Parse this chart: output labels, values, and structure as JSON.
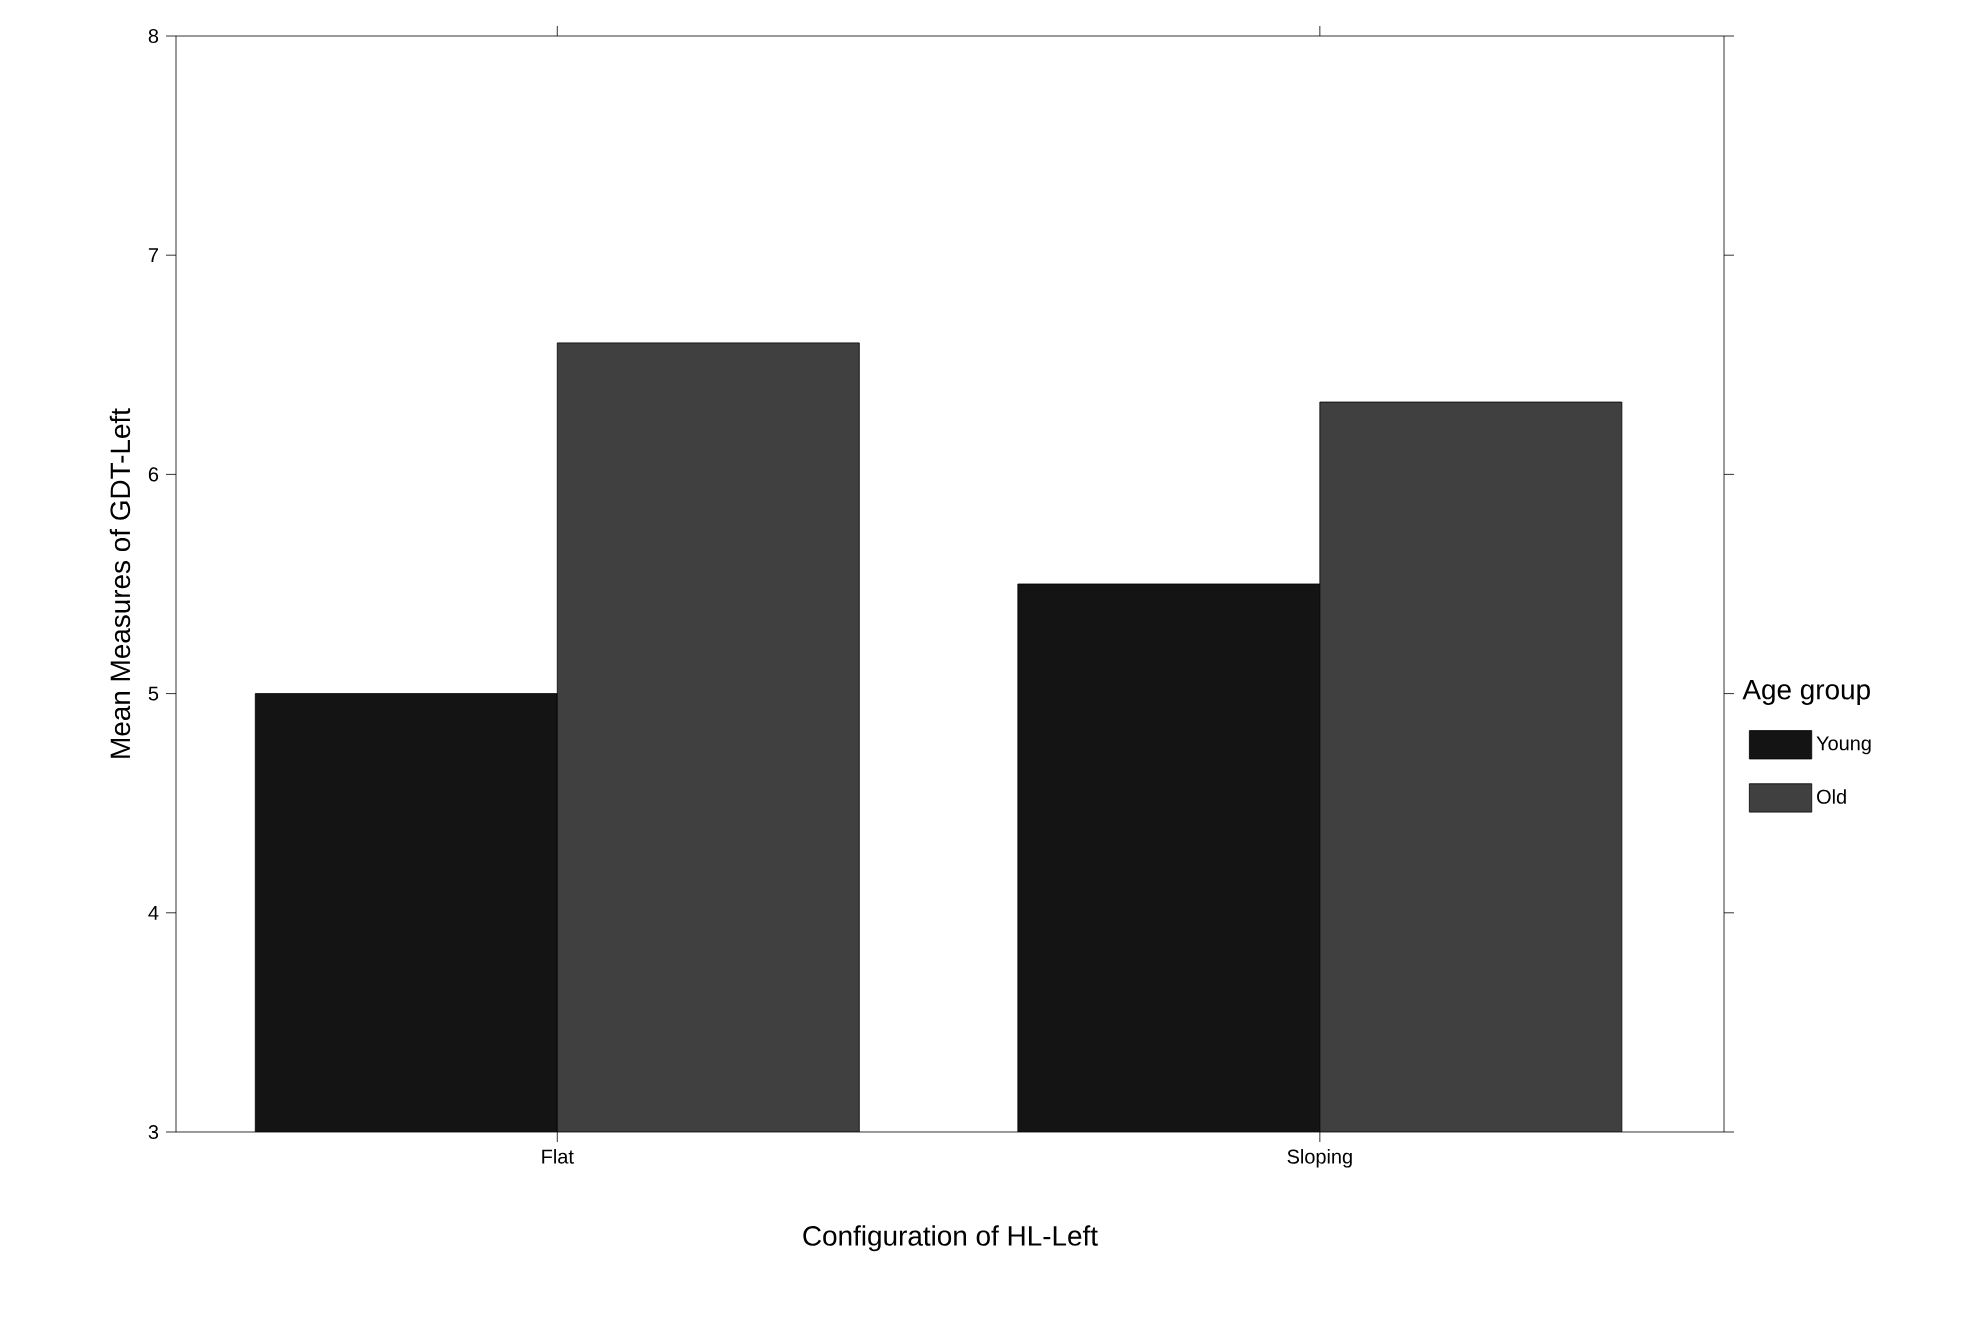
{
  "chart_data": {
    "type": "bar",
    "xlabel": "Configuration of HL-Left",
    "ylabel": "Mean Measures of GDT-Left",
    "legend_title": "Age group",
    "legend": "right",
    "categories": [
      "Flat",
      "Sloping"
    ],
    "series": [
      {
        "name": "Young",
        "color": "#141414",
        "values": [
          5.0,
          5.5
        ]
      },
      {
        "name": "Old",
        "color": "#404040",
        "values": [
          6.6,
          6.33
        ]
      }
    ],
    "ylim": [
      3,
      8
    ],
    "yticks": [
      3,
      4,
      5,
      6,
      7,
      8
    ]
  }
}
